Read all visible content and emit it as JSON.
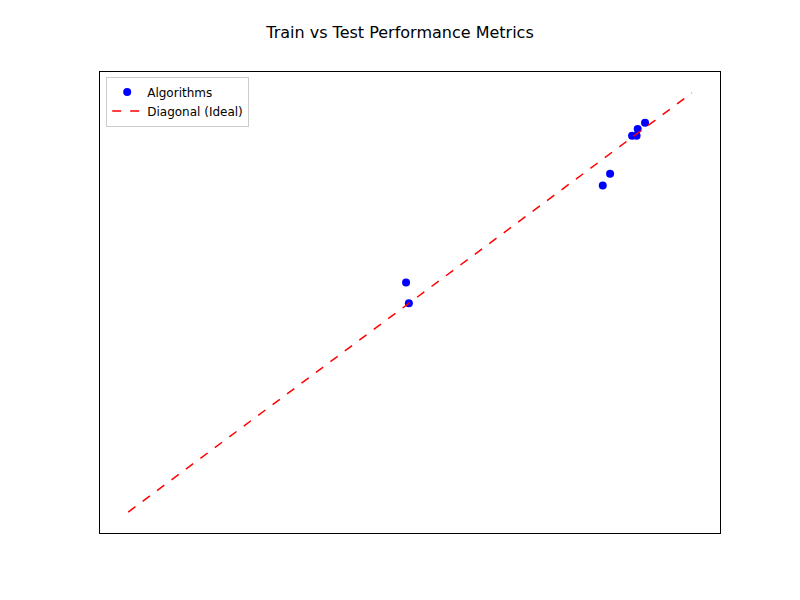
{
  "chart_data": {
    "type": "scatter",
    "title": "Train vs Test Performance Metrics",
    "xlim": [
      -0.05,
      1.05
    ],
    "ylim": [
      -0.05,
      1.05
    ],
    "tick_labels": false,
    "grid": false,
    "legend": "upper left",
    "series": [
      {
        "name": "Algorithms",
        "type": "scatter",
        "color": "blue",
        "marker": "circle",
        "x": [
          0.493,
          0.498,
          0.842,
          0.855,
          0.894,
          0.902,
          0.904,
          0.917
        ],
        "values": [
          0.548,
          0.498,
          0.779,
          0.807,
          0.898,
          0.898,
          0.914,
          0.929
        ]
      },
      {
        "name": "Diagonal (Ideal)",
        "type": "line",
        "color": "red",
        "line_style": "dashed",
        "x": [
          0,
          1
        ],
        "values": [
          0,
          1
        ]
      }
    ]
  }
}
